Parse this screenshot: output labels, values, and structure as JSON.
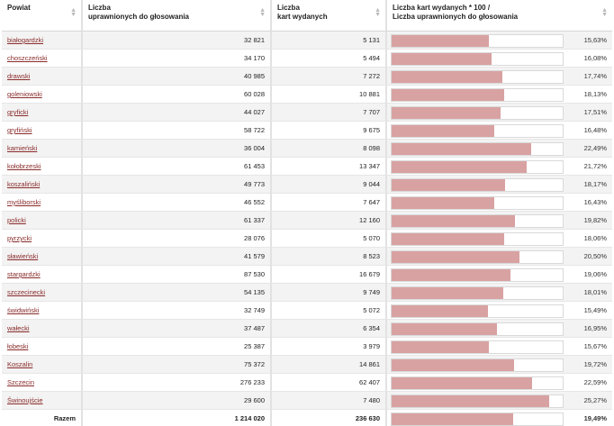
{
  "headers": {
    "col1": "Powiat",
    "col2_line1": "Liczba",
    "col2_line2": "uprawnionych do głosowania",
    "col3_line1": "Liczba",
    "col3_line2": "kart wydanych",
    "col4_line1": "Liczba kart wydanych * 100 /",
    "col4_line2": "Liczba uprawnionych do głosowania"
  },
  "rows": [
    {
      "name": "białogardzki",
      "uprawnieni": "32 821",
      "karty": "5 131",
      "pct_label": "15,63%",
      "pct": 15.63
    },
    {
      "name": "choszczeński",
      "uprawnieni": "34 170",
      "karty": "5 494",
      "pct_label": "16,08%",
      "pct": 16.08
    },
    {
      "name": "drawski",
      "uprawnieni": "40 985",
      "karty": "7 272",
      "pct_label": "17,74%",
      "pct": 17.74
    },
    {
      "name": "goleniowski",
      "uprawnieni": "60 028",
      "karty": "10 881",
      "pct_label": "18,13%",
      "pct": 18.13
    },
    {
      "name": "gryficki",
      "uprawnieni": "44 027",
      "karty": "7 707",
      "pct_label": "17,51%",
      "pct": 17.51
    },
    {
      "name": "gryfiński",
      "uprawnieni": "58 722",
      "karty": "9 675",
      "pct_label": "16,48%",
      "pct": 16.48
    },
    {
      "name": "kamieński",
      "uprawnieni": "36 004",
      "karty": "8 098",
      "pct_label": "22,49%",
      "pct": 22.49
    },
    {
      "name": "kołobrzeski",
      "uprawnieni": "61 453",
      "karty": "13 347",
      "pct_label": "21,72%",
      "pct": 21.72
    },
    {
      "name": "koszaliński",
      "uprawnieni": "49 773",
      "karty": "9 044",
      "pct_label": "18,17%",
      "pct": 18.17
    },
    {
      "name": "myśliborski",
      "uprawnieni": "46 552",
      "karty": "7 647",
      "pct_label": "16,43%",
      "pct": 16.43
    },
    {
      "name": "policki",
      "uprawnieni": "61 337",
      "karty": "12 160",
      "pct_label": "19,82%",
      "pct": 19.82
    },
    {
      "name": "pyrzycki",
      "uprawnieni": "28 076",
      "karty": "5 070",
      "pct_label": "18,06%",
      "pct": 18.06
    },
    {
      "name": "sławieński",
      "uprawnieni": "41 579",
      "karty": "8 523",
      "pct_label": "20,50%",
      "pct": 20.5
    },
    {
      "name": "stargardzki",
      "uprawnieni": "87 530",
      "karty": "16 679",
      "pct_label": "19,06%",
      "pct": 19.06
    },
    {
      "name": "szczecinecki",
      "uprawnieni": "54 135",
      "karty": "9 749",
      "pct_label": "18,01%",
      "pct": 18.01
    },
    {
      "name": "świdwiński",
      "uprawnieni": "32 749",
      "karty": "5 072",
      "pct_label": "15,49%",
      "pct": 15.49
    },
    {
      "name": "wałecki",
      "uprawnieni": "37 487",
      "karty": "6 354",
      "pct_label": "16,95%",
      "pct": 16.95
    },
    {
      "name": "łobeski",
      "uprawnieni": "25 387",
      "karty": "3 979",
      "pct_label": "15,67%",
      "pct": 15.67
    },
    {
      "name": "Koszalin",
      "uprawnieni": "75 372",
      "karty": "14 861",
      "pct_label": "19,72%",
      "pct": 19.72
    },
    {
      "name": "Szczecin",
      "uprawnieni": "276 233",
      "karty": "62 407",
      "pct_label": "22,59%",
      "pct": 22.59
    },
    {
      "name": "Świnoujście",
      "uprawnieni": "29 600",
      "karty": "7 480",
      "pct_label": "25,27%",
      "pct": 25.27
    }
  ],
  "total": {
    "label": "Razem",
    "uprawnieni": "1 214 020",
    "karty": "236 630",
    "pct_label": "19,49%",
    "pct": 19.49
  },
  "bar_scale_max_pct": 27.5,
  "colors": {
    "bar_fill": "#d9a2a2",
    "link": "#8a2b2b",
    "row_stripe": "#f3f3f3"
  },
  "icons": {
    "sort": "sort-arrows-icon"
  }
}
